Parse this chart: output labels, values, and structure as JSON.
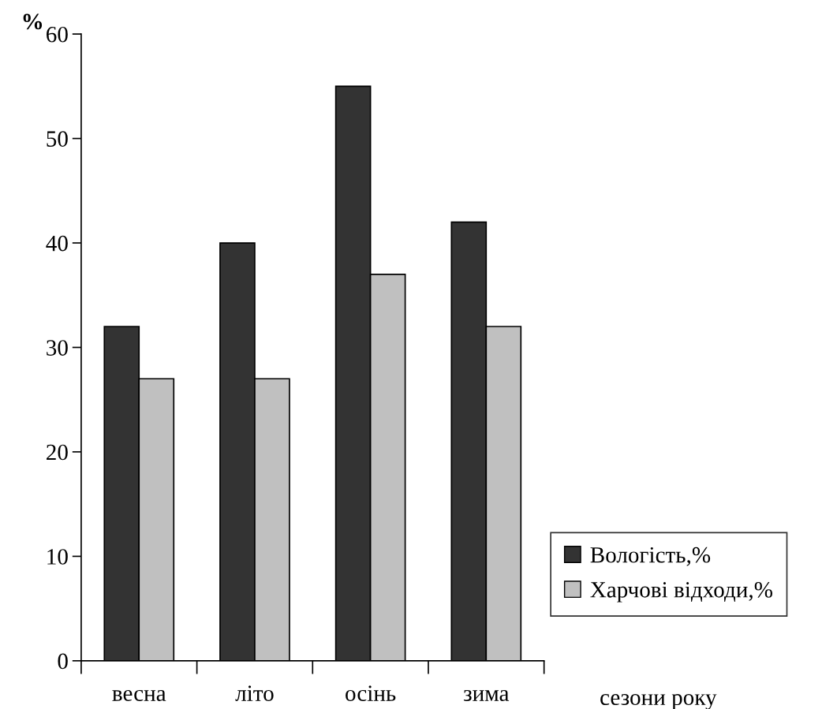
{
  "chart_data": {
    "type": "bar",
    "ylabel": "%",
    "xlabel": "сезони року",
    "categories": [
      "весна",
      "літо",
      "осінь",
      "зима"
    ],
    "series": [
      {
        "name": "Вологість,%",
        "color": "#333333",
        "values": [
          32,
          40,
          55,
          42
        ]
      },
      {
        "name": "Харчові відходи,%",
        "color": "#c0c0c0",
        "values": [
          27,
          27,
          37,
          32
        ]
      }
    ],
    "ylim": [
      0,
      60
    ],
    "yticks": [
      0,
      10,
      20,
      30,
      40,
      50,
      60
    ],
    "grid": false,
    "legend": "right"
  }
}
